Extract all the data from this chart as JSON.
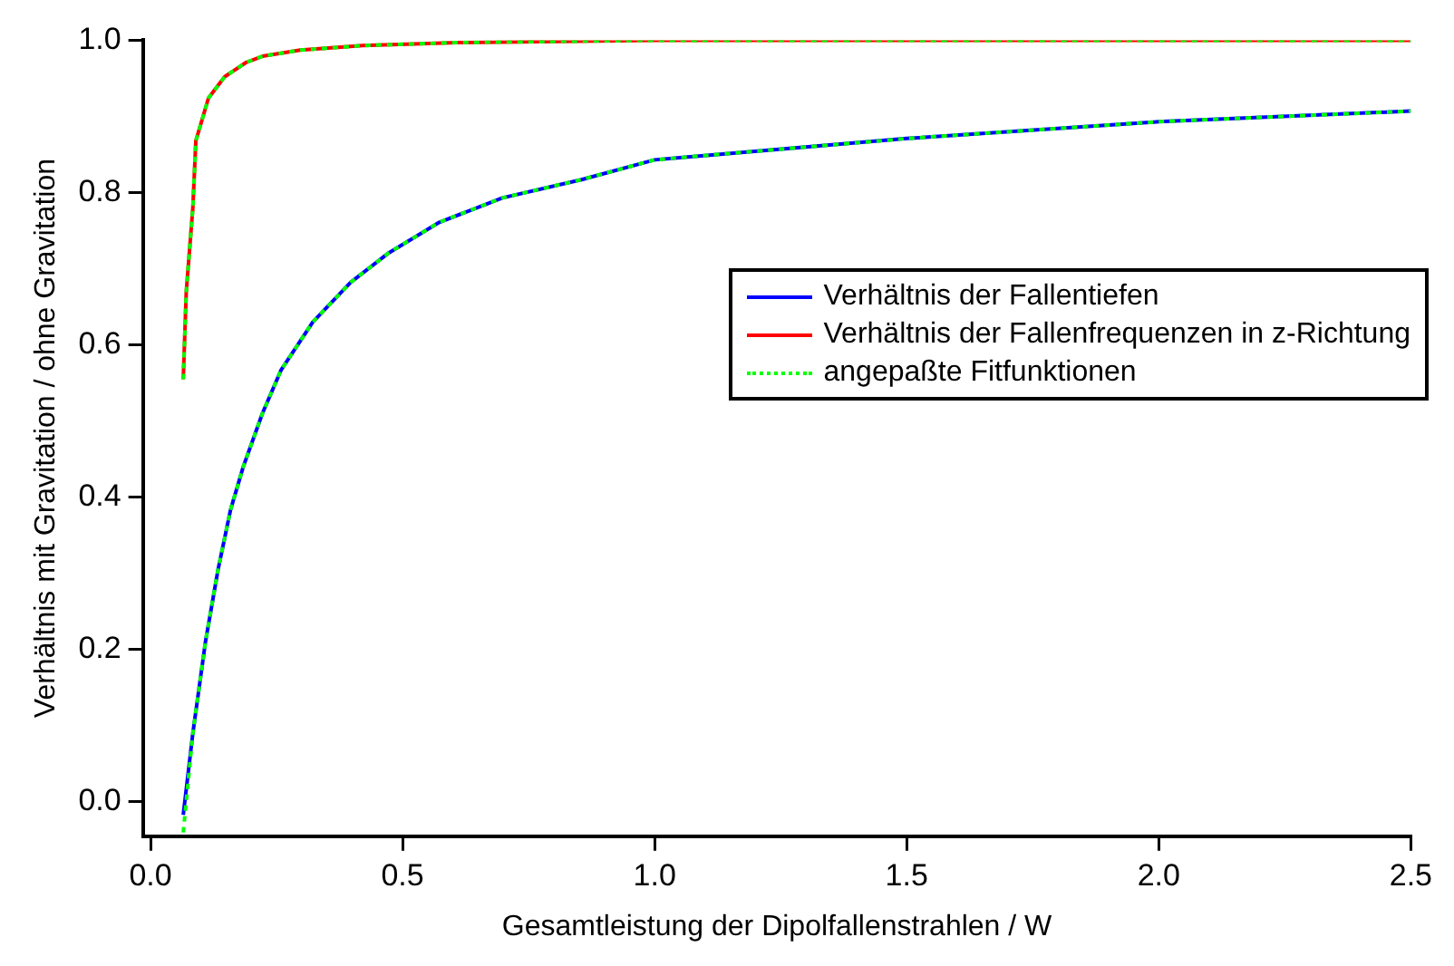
{
  "chart_data": {
    "type": "line",
    "xlabel": "Gesamtleistung der Dipolfallenstrahlen / W",
    "ylabel": "Verhältnis mit Gravitation / ohne Gravitation",
    "xlim": [
      -0.015,
      2.5
    ],
    "ylim": [
      -0.045,
      1.0
    ],
    "xticks": [
      {
        "value": 0,
        "label": "0.0"
      },
      0.5,
      {
        "value": 1,
        "label": "1.0"
      },
      1.5,
      {
        "value": 2,
        "label": "2.0"
      },
      2.5
    ],
    "yticks": [
      {
        "value": 0,
        "label": "0.0"
      },
      0.2,
      0.4,
      0.6,
      0.8,
      {
        "value": 1,
        "label": "1.0"
      }
    ],
    "grid": false,
    "legend": "right",
    "marker": "none",
    "series": [
      {
        "name": "Verhältnis der Fallentiefen",
        "color": "#0000ff",
        "line_style": "solid",
        "x": [
          0.065,
          0.084,
          0.109,
          0.134,
          0.159,
          0.184,
          0.222,
          0.259,
          0.322,
          0.397,
          0.473,
          0.573,
          0.698,
          0.855,
          1.0,
          1.5,
          2.0,
          2.5
        ],
        "values": [
          -0.017,
          0.09,
          0.21,
          0.305,
          0.384,
          0.44,
          0.51,
          0.567,
          0.63,
          0.682,
          0.721,
          0.761,
          0.793,
          0.817,
          0.843,
          0.871,
          0.893,
          0.907
        ]
      },
      {
        "name": "Verhältnis der Fallenfrequenzen in z-Richtung",
        "color": "#ff0000",
        "line_style": "solid",
        "x": [
          0.065,
          0.071,
          0.084,
          0.09,
          0.115,
          0.147,
          0.19,
          0.222,
          0.297,
          0.421,
          0.609,
          1.0,
          2.5
        ],
        "values": [
          0.555,
          0.67,
          0.78,
          0.868,
          0.924,
          0.952,
          0.971,
          0.979,
          0.987,
          0.993,
          0.997,
          1.0,
          1.0
        ]
      },
      {
        "name": "angepaßte Fitfunktionen",
        "color": "#00ff00",
        "line_style": "dotted",
        "x": [
          0.065,
          0.071,
          0.084,
          0.09,
          0.115,
          0.147,
          0.19,
          0.222,
          0.297,
          0.421,
          0.609,
          1.0,
          2.5
        ],
        "values": [
          0.555,
          0.67,
          0.78,
          0.868,
          0.924,
          0.952,
          0.971,
          0.979,
          0.987,
          0.993,
          0.997,
          1.0,
          1.0
        ]
      },
      {
        "color": "#00ff00",
        "line_style": "dotted",
        "x": [
          0.065,
          0.084,
          0.109,
          0.134,
          0.159,
          0.184,
          0.222,
          0.259,
          0.322,
          0.397,
          0.473,
          0.573,
          0.698,
          0.855,
          1.0,
          1.5,
          2.0,
          2.5
        ],
        "values": [
          -0.04,
          0.09,
          0.21,
          0.305,
          0.384,
          0.44,
          0.51,
          0.567,
          0.63,
          0.682,
          0.721,
          0.761,
          0.793,
          0.817,
          0.843,
          0.871,
          0.893,
          0.907
        ]
      }
    ]
  }
}
